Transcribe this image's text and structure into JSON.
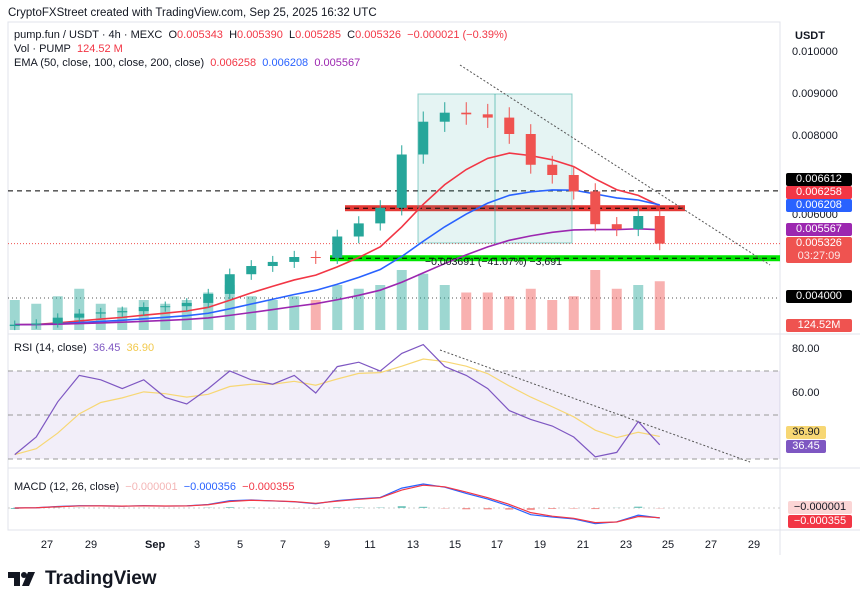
{
  "credit": "CryptoFXStreet created with TradingView.com, Sep 25, 2025 16:32 UTC",
  "legend": {
    "symbol": "pump.fun / USDT · 4h · MEXC",
    "open_label": "O",
    "open": "0.005343",
    "high_label": "H",
    "high": "0.005390",
    "low_label": "L",
    "low": "0.005285",
    "close_label": "C",
    "close": "0.005326",
    "change": "−0.000021 (−0.39%)",
    "vol_label": "Vol · PUMP",
    "vol": "124.52 M",
    "ema_label": "EMA (50, close, 100, close, 200, close)",
    "ema50": "0.006258",
    "ema100": "0.006208",
    "ema200": "0.005567"
  },
  "currency": "USDT",
  "colors": {
    "up": "#26a69a",
    "down": "#ef5350",
    "ema50": "#f23645",
    "ema100": "#2962ff",
    "ema200": "#9c27b0",
    "rsi": "#7e57c2",
    "rsi_ma": "#f7d774",
    "macd": "#2962ff",
    "signal": "#f23645",
    "green_zone": "#00e600",
    "red_zone": "#e53935"
  },
  "price_axis": [
    "0.010000",
    "0.009000",
    "0.008000",
    "0.006000",
    "0.004000"
  ],
  "price_labels": {
    "level_top": "0.006612",
    "ema50": "0.006258",
    "ema100": "0.006208",
    "ema200": "0.005567",
    "last": "0.005326",
    "countdown": "03:27:09",
    "level_low": "0.004000",
    "volume": "124.52M"
  },
  "measure": "−0.003691 (−41.07%) −3,691",
  "rsi": {
    "label": "RSI (14, close)",
    "value": "36.45",
    "ma": "36.90",
    "axis": [
      "80.00",
      "60.00"
    ]
  },
  "macd": {
    "label": "MACD (12, 26, close)",
    "hist": "−0.000001",
    "macd": "−0.000356",
    "signal": "−0.000355",
    "hist_label": "−0.000001",
    "signal_label": "−0.000355"
  },
  "time_axis": [
    "27",
    "29",
    "Sep",
    "3",
    "5",
    "7",
    "9",
    "11",
    "13",
    "15",
    "17",
    "19",
    "21",
    "23",
    "25",
    "27",
    "29"
  ],
  "brand": "TradingView",
  "chart_data": {
    "type": "candlestick",
    "title": "pump.fun / USDT · 4h · MEXC",
    "ylim": [
      0.00315,
      0.0105
    ],
    "horizontal_levels": [
      0.006612,
      0.00619,
      0.00497,
      0.004
    ],
    "series": [
      {
        "date": "Aug 26",
        "close": 0.00335,
        "volume": 40,
        "rsi": 32
      },
      {
        "date": "Aug 27",
        "close": 0.00338,
        "volume": 35,
        "rsi": 40
      },
      {
        "date": "Aug 28",
        "close": 0.00352,
        "volume": 45,
        "rsi": 56
      },
      {
        "date": "Aug 29",
        "close": 0.00362,
        "volume": 55,
        "rsi": 68
      },
      {
        "date": "Aug 30",
        "close": 0.00365,
        "volume": 35,
        "rsi": 66
      },
      {
        "date": "Aug 31",
        "close": 0.00368,
        "volume": 30,
        "rsi": 62
      },
      {
        "date": "Sep 1",
        "close": 0.00378,
        "volume": 40,
        "rsi": 66
      },
      {
        "date": "Sep 2",
        "close": 0.0038,
        "volume": 35,
        "rsi": 58
      },
      {
        "date": "Sep 3",
        "close": 0.00388,
        "volume": 40,
        "rsi": 55
      },
      {
        "date": "Sep 4",
        "close": 0.0041,
        "volume": 50,
        "rsi": 62
      },
      {
        "date": "Sep 5",
        "close": 0.00458,
        "volume": 60,
        "rsi": 70
      },
      {
        "date": "Sep 6",
        "close": 0.00478,
        "volume": 45,
        "rsi": 66
      },
      {
        "date": "Sep 7",
        "close": 0.00488,
        "volume": 40,
        "rsi": 64
      },
      {
        "date": "Sep 8",
        "close": 0.005,
        "volume": 45,
        "rsi": 68
      },
      {
        "date": "Sep 9",
        "close": 0.00498,
        "volume": 40,
        "rsi": 60
      },
      {
        "date": "Sep 10",
        "close": 0.0055,
        "volume": 60,
        "rsi": 72
      },
      {
        "date": "Sep 11",
        "close": 0.00582,
        "volume": 55,
        "rsi": 74
      },
      {
        "date": "Sep 12",
        "close": 0.0062,
        "volume": 60,
        "rsi": 70
      },
      {
        "date": "Sep 13",
        "close": 0.0075,
        "volume": 80,
        "rsi": 78
      },
      {
        "date": "Sep 14",
        "close": 0.0083,
        "volume": 75,
        "rsi": 82
      },
      {
        "date": "Sep 15",
        "close": 0.00852,
        "volume": 60,
        "rsi": 72
      },
      {
        "date": "Sep 16",
        "close": 0.00848,
        "volume": 50,
        "rsi": 68
      },
      {
        "date": "Sep 17",
        "close": 0.0084,
        "volume": 50,
        "rsi": 62
      },
      {
        "date": "Sep 18",
        "close": 0.008,
        "volume": 45,
        "rsi": 52
      },
      {
        "date": "Sep 19",
        "close": 0.00725,
        "volume": 55,
        "rsi": 48
      },
      {
        "date": "Sep 20",
        "close": 0.007,
        "volume": 40,
        "rsi": 45
      },
      {
        "date": "Sep 21",
        "close": 0.0066,
        "volume": 45,
        "rsi": 40
      },
      {
        "date": "Sep 22",
        "close": 0.0058,
        "volume": 80,
        "rsi": 31
      },
      {
        "date": "Sep 23",
        "close": 0.00568,
        "volume": 55,
        "rsi": 33
      },
      {
        "date": "Sep 24",
        "close": 0.006,
        "volume": 60,
        "rsi": 47
      },
      {
        "date": "Sep 25",
        "close": 0.005326,
        "volume": 65,
        "rsi": 36.45
      }
    ]
  }
}
